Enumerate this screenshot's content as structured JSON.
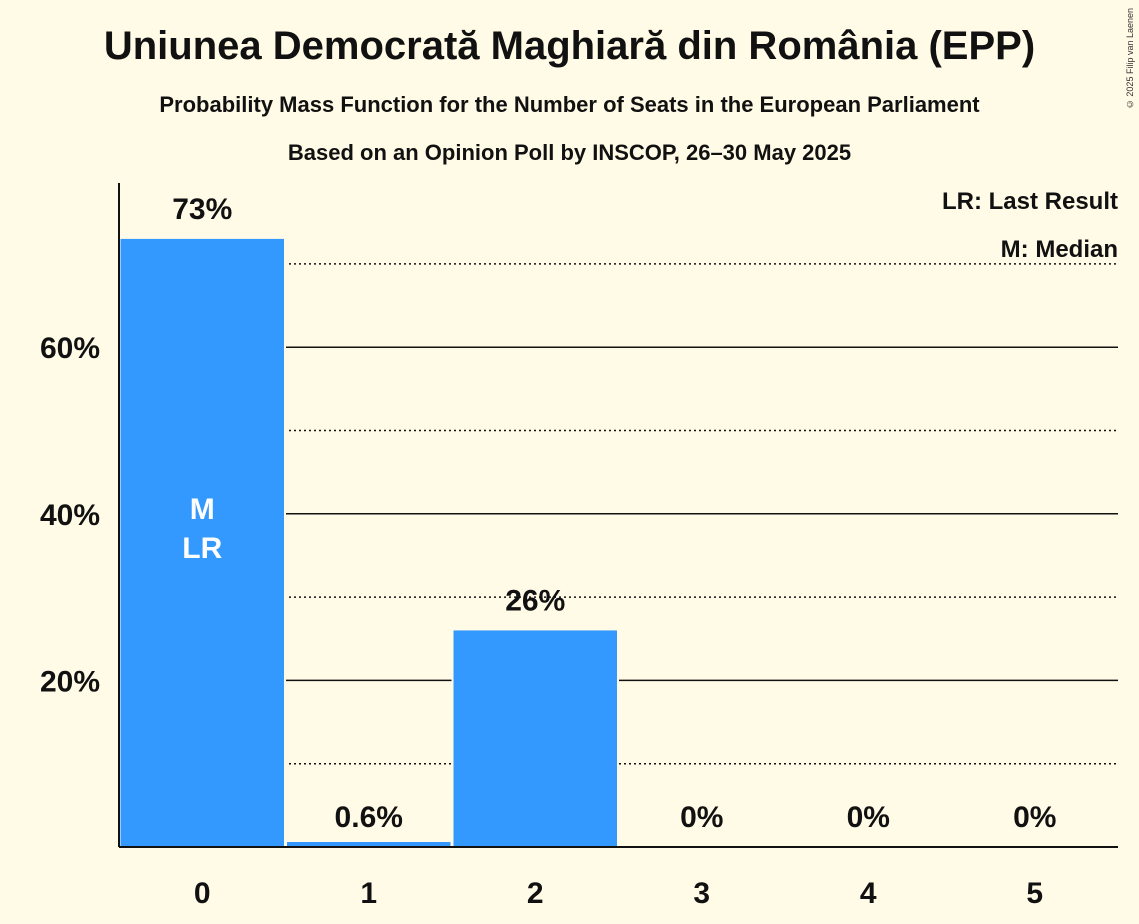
{
  "chart_data": {
    "type": "bar",
    "title": "Uniunea Democrată Maghiară din România (EPP)",
    "subtitle": "Probability Mass Function for the Number of Seats in the European Parliament",
    "subtitle2": "Based on an Opinion Poll by INSCOP, 26–30 May 2025",
    "copyright": "© 2025 Filip van Laenen",
    "categories": [
      "0",
      "1",
      "2",
      "3",
      "4",
      "5"
    ],
    "values": [
      73,
      0.6,
      26,
      0,
      0,
      0
    ],
    "value_labels": [
      "73%",
      "0.6%",
      "26%",
      "0%",
      "0%",
      "0%"
    ],
    "ylim": [
      0,
      80
    ],
    "y_ticks": [
      {
        "value": 20,
        "label": "20%"
      },
      {
        "value": 40,
        "label": "40%"
      },
      {
        "value": 60,
        "label": "60%"
      }
    ],
    "minor_grid": [
      10,
      30,
      50,
      70
    ],
    "bar_color": "#3399FF",
    "median_index": 0,
    "last_result_index": 0,
    "median_marker": "M",
    "last_result_marker": "LR",
    "legend": [
      "LR: Last Result",
      "M: Median"
    ],
    "legend_position": "top-right"
  }
}
